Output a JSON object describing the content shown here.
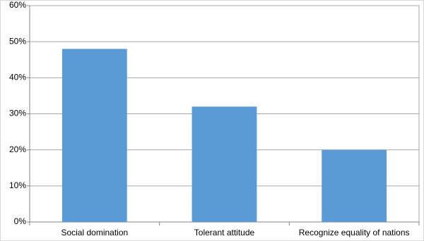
{
  "chart_data": {
    "type": "bar",
    "categories": [
      "Social domination",
      "Tolerant attitude",
      "Recognize equality of nations"
    ],
    "values": [
      48,
      32,
      20
    ],
    "color": "#5b9bd5",
    "ylim": [
      0,
      60
    ],
    "yticks": [
      {
        "value": 0,
        "label": "0%"
      },
      {
        "value": 10,
        "label": "10%"
      },
      {
        "value": 20,
        "label": "20%"
      },
      {
        "value": 30,
        "label": "30%"
      },
      {
        "value": 40,
        "label": "40%"
      },
      {
        "value": 50,
        "label": "50%"
      },
      {
        "value": 60,
        "label": "60%"
      }
    ],
    "grid": true
  }
}
